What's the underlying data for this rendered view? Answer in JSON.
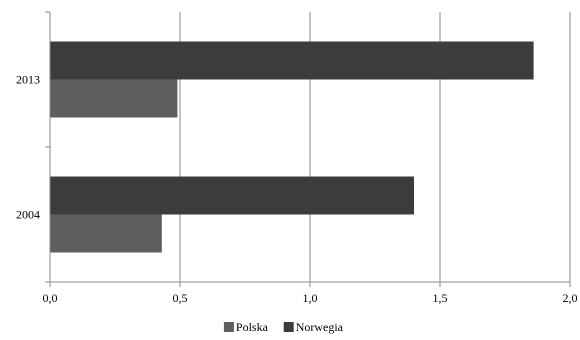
{
  "chart_data": {
    "type": "bar",
    "orientation": "horizontal",
    "categories": [
      "2004",
      "2013"
    ],
    "series": [
      {
        "name": "Polska",
        "values": [
          0.43,
          0.49
        ],
        "color": "#5f5f5f"
      },
      {
        "name": "Norwegia",
        "values": [
          1.4,
          1.86
        ],
        "color": "#3c3c3c"
      }
    ],
    "x_ticks": [
      "0,0",
      "0,5",
      "1,0",
      "1,5",
      "2,0"
    ],
    "xlim": [
      0,
      2
    ],
    "grid": true,
    "legend_position": "bottom",
    "title": "",
    "xlabel": "",
    "ylabel": ""
  }
}
